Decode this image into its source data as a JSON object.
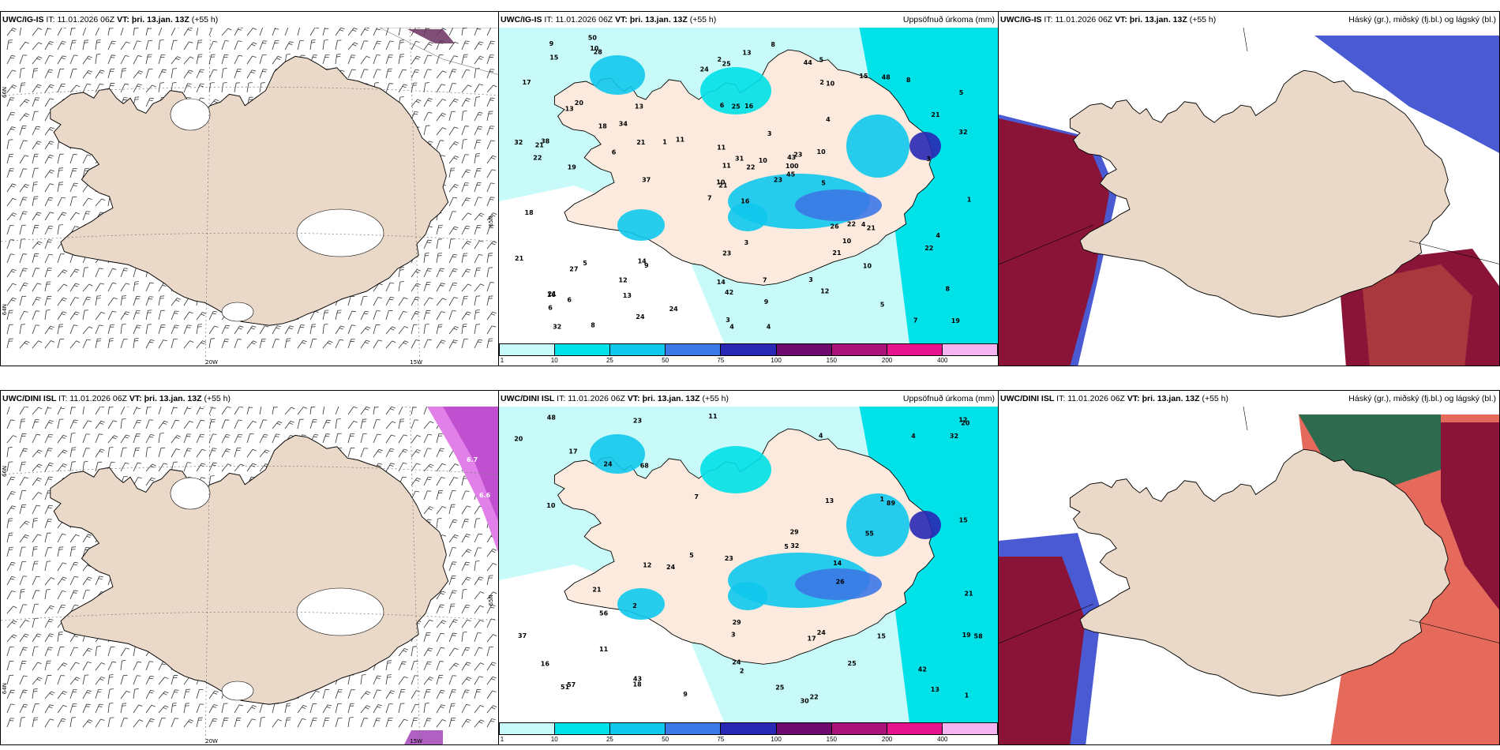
{
  "colors": {
    "land": "#ead9c8",
    "sea": "#ffffff",
    "precip_levels": [
      "#c8fafa",
      "#00e1e8",
      "#10c8ec",
      "#3c78e6",
      "#2828b4",
      "#6e0a6e",
      "#aa1478",
      "#e6148c",
      "#f5b4f0"
    ],
    "cloud_high": "#2a4a8a",
    "cloud_mid": "#8a1438",
    "cloud_low": "#4a5ad2"
  },
  "panels": [
    {
      "id": "p1",
      "model": "UWC/IG-IS",
      "it_label": "IT:",
      "it_value": "11.01.2026 06Z",
      "vt_label": "VT:",
      "vt_value": "þri. 13.jan. 13Z",
      "lead": "(+55 h)",
      "right_title": "",
      "grid_labels": [
        "66N",
        "64N",
        "65N",
        "20W",
        "15W"
      ]
    },
    {
      "id": "p2",
      "model": "UWC/IG-IS",
      "it_label": "IT:",
      "it_value": "11.01.2026 06Z",
      "vt_label": "VT:",
      "vt_value": "þri. 13.jan. 13Z",
      "lead": "(+55 h)",
      "right_title": "Uppsöfnuð úrkoma (mm)",
      "legend_ticks": [
        "1",
        "10",
        "25",
        "50",
        "75",
        "100",
        "150",
        "200",
        "400"
      ],
      "values": [
        "16",
        "13",
        "21",
        "21",
        "43",
        "9",
        "5",
        "16",
        "10",
        "23",
        "28",
        "19",
        "19",
        "5",
        "7",
        "4",
        "8",
        "6",
        "3",
        "5",
        "11",
        "6",
        "13",
        "25",
        "23",
        "21",
        "20",
        "25",
        "22",
        "26",
        "32",
        "10",
        "14",
        "11",
        "13",
        "15",
        "14",
        "7",
        "8",
        "4",
        "8",
        "1",
        "6",
        "21",
        "24",
        "32",
        "100",
        "32",
        "42",
        "45",
        "27",
        "21",
        "17",
        "10",
        "12",
        "12",
        "10",
        "9",
        "7",
        "8",
        "13",
        "37",
        "38",
        "34",
        "48",
        "50",
        "44",
        "24",
        "31",
        "21",
        "23",
        "24",
        "22",
        "21",
        "16",
        "15",
        "18",
        "18",
        "11",
        "9",
        "10",
        "6",
        "5",
        "4",
        "3",
        "3",
        "3",
        "5",
        "4",
        "3",
        "2",
        "1",
        "10",
        "10",
        "22",
        "22",
        "21",
        "4",
        "2"
      ]
    },
    {
      "id": "p3",
      "model": "UWC/IG-IS",
      "it_label": "IT:",
      "it_value": "11.01.2026 06Z",
      "vt_label": "VT:",
      "vt_value": "þri. 13.jan. 13Z",
      "lead": "(+55 h)",
      "right_title": "Háský (gr.), miðský (fj.bl.) og lágský (bl.)"
    },
    {
      "id": "p4",
      "model": "UWC/DINI ISL",
      "it_label": "IT:",
      "it_value": "11.01.2026 06Z",
      "vt_label": "VT:",
      "vt_value": "þri. 13.jan. 13Z",
      "lead": "(+55 h)",
      "right_title": "",
      "grid_labels": [
        "66N",
        "64N",
        "65N",
        "20W",
        "15W"
      ],
      "pressure_labels": [
        "6.7",
        "6.6"
      ]
    },
    {
      "id": "p5",
      "model": "UWC/DINI ISL",
      "it_label": "IT:",
      "it_value": "11.01.2026 06Z",
      "vt_label": "VT:",
      "vt_value": "þri. 13.jan. 13Z",
      "lead": "(+55 h)",
      "right_title": "Uppsöfnuð úrkoma (mm)",
      "legend_ticks": [
        "1",
        "10",
        "25",
        "50",
        "75",
        "100",
        "150",
        "200",
        "400"
      ],
      "values": [
        "9",
        "30",
        "43",
        "25",
        "23",
        "17",
        "12",
        "13",
        "11",
        "7",
        "4",
        "2",
        "5",
        "3",
        "4",
        "5",
        "10",
        "18",
        "24",
        "20",
        "17",
        "20",
        "29",
        "51",
        "89",
        "21",
        "37",
        "56",
        "48",
        "26",
        "23",
        "22",
        "29",
        "32",
        "11",
        "14",
        "19",
        "16",
        "13",
        "42",
        "32",
        "55",
        "58",
        "57",
        "68",
        "24",
        "21",
        "25",
        "24",
        "24",
        "12",
        "15",
        "1",
        "15",
        "2",
        "1"
      ]
    },
    {
      "id": "p6",
      "model": "UWC/DINI ISL",
      "it_label": "IT:",
      "it_value": "11.01.2026 06Z",
      "vt_label": "VT:",
      "vt_value": "þri. 13.jan. 13Z",
      "lead": "(+55 h)",
      "right_title": "Háský (gr.), miðský (fj.bl.) og lágský (bl.)"
    }
  ]
}
